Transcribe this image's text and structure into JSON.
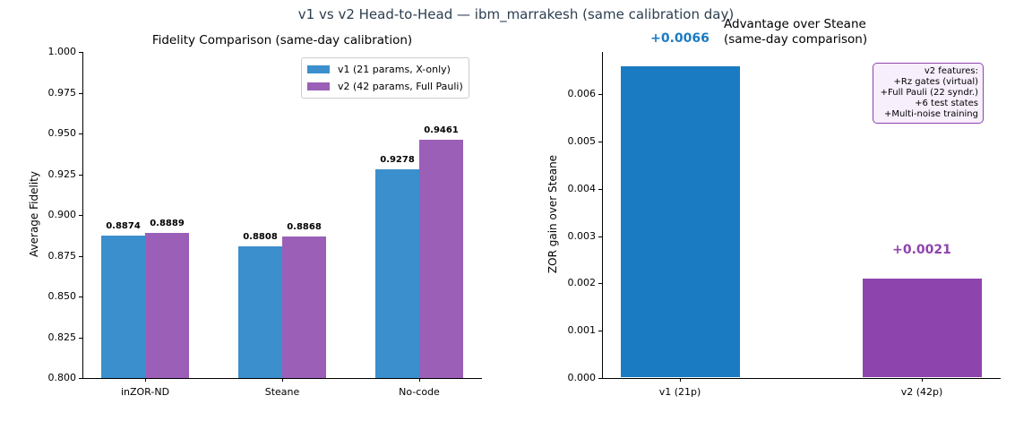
{
  "suptitle": "v1 vs v2 Head-to-Head — ibm_marrakesh (same calibration day)",
  "colors": {
    "v1": "#3b8fcc",
    "v2": "#9b5fb8",
    "v1_dark": "#1b7bc2",
    "v2_dark": "#8e44ad"
  },
  "chart_data": [
    {
      "type": "bar",
      "title": "Fidelity Comparison (same-day calibration)",
      "xlabel": "",
      "ylabel": "Average Fidelity",
      "ylim": [
        0.8,
        1.0
      ],
      "yticks": [
        "0.800",
        "0.825",
        "0.850",
        "0.875",
        "0.900",
        "0.925",
        "0.950",
        "0.975",
        "1.000"
      ],
      "categories": [
        "inZOR-ND",
        "Steane",
        "No-code"
      ],
      "series": [
        {
          "name": "v1 (21 params, X-only)",
          "values": [
            0.8874,
            0.8808,
            0.9278
          ],
          "labels": [
            "0.8874",
            "0.8808",
            "0.9278"
          ]
        },
        {
          "name": "v2 (42 params, Full Pauli)",
          "values": [
            0.8889,
            0.8868,
            0.9461
          ],
          "labels": [
            "0.8889",
            "0.8868",
            "0.9461"
          ]
        }
      ],
      "legend_position": "upper right",
      "grid": false
    },
    {
      "type": "bar",
      "title": "Advantage over Steane\n(same-day comparison)",
      "xlabel": "",
      "ylabel": "ZOR gain over Steane",
      "ylim": [
        0.0,
        0.0069
      ],
      "yticks": [
        "0.000",
        "0.001",
        "0.002",
        "0.003",
        "0.004",
        "0.005",
        "0.006"
      ],
      "categories": [
        "v1 (21p)",
        "v2 (42p)"
      ],
      "values": [
        0.0066,
        0.0021
      ],
      "labels": [
        "+0.0066",
        "+0.0021"
      ],
      "annotation": "v2 features:\n+Rz gates (virtual)\n+Full Pauli (22 syndr.)\n+6 test states\n+Multi-noise training",
      "grid": false
    }
  ]
}
